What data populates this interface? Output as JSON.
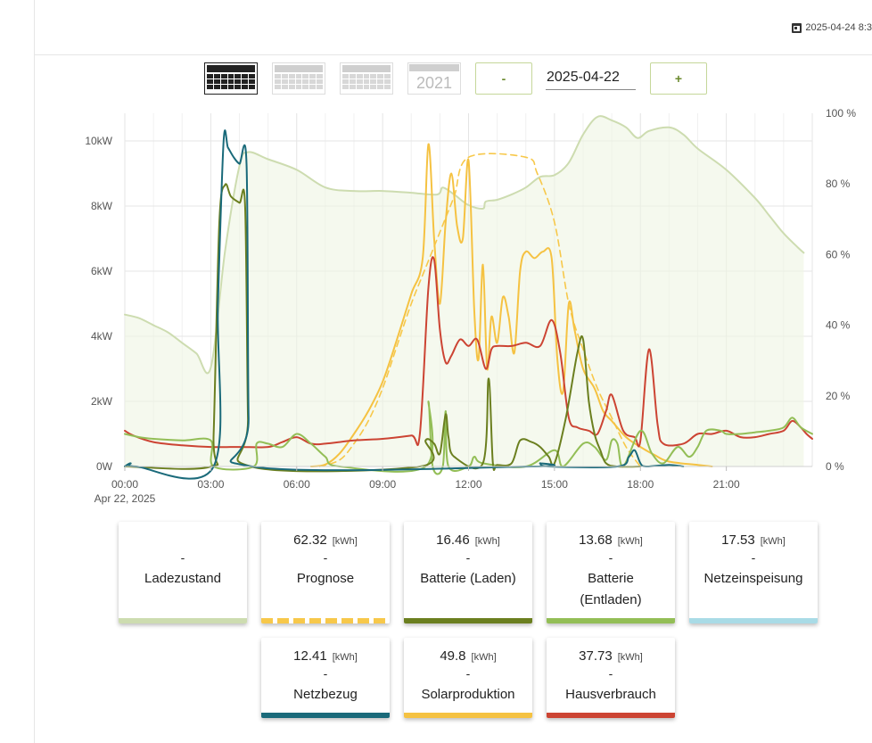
{
  "header": {
    "datetime": "2025-04-24 8:3"
  },
  "toolbar": {
    "year_label": "2021",
    "minus_label": "-",
    "plus_label": "+",
    "date_value": "2025-04-22"
  },
  "colors": {
    "ladezustand": "#cddcb0",
    "prognose": "#f7c84a",
    "batterie_laden": "#6b7f1f",
    "batterie_entladen": "#93be56",
    "netzeinspeisung": "#a9dbe6",
    "netzbezug": "#1a6a7a",
    "solarproduktion": "#f5c242",
    "hausverbrauch": "#cc4433"
  },
  "cards": [
    {
      "key": "ladezustand",
      "value": "",
      "unit": "",
      "dash": "-",
      "label": "Ladezustand"
    },
    {
      "key": "prognose",
      "value": "62.32",
      "unit": "[kWh]",
      "dash": "-",
      "label": "Prognose"
    },
    {
      "key": "batterie_laden",
      "value": "16.46",
      "unit": "[kWh]",
      "dash": "-",
      "label": "Batterie (Laden)"
    },
    {
      "key": "batterie_entladen",
      "value": "13.68",
      "unit": "[kWh]",
      "dash": "-",
      "label": "Batterie (Entladen)"
    },
    {
      "key": "netzeinspeisung",
      "value": "17.53",
      "unit": "[kWh]",
      "dash": "-",
      "label": "Netzeinspeisung"
    },
    {
      "key": "netzbezug",
      "value": "12.41",
      "unit": "[kWh]",
      "dash": "-",
      "label": "Netzbezug"
    },
    {
      "key": "solarproduktion",
      "value": "49.8",
      "unit": "[kWh]",
      "dash": "-",
      "label": "Solarproduktion"
    },
    {
      "key": "hausverbrauch",
      "value": "37.73",
      "unit": "[kWh]",
      "dash": "-",
      "label": "Hausverbrauch"
    }
  ],
  "chart_data": {
    "type": "line",
    "x_unit": "hours",
    "xlim": [
      0,
      24
    ],
    "ylim_left": [
      0,
      10500
    ],
    "ylim_right": [
      0,
      100
    ],
    "x_ticks": [
      {
        "x": 0,
        "label": "00:00",
        "sub": "Apr 22, 2025"
      },
      {
        "x": 3,
        "label": "03:00"
      },
      {
        "x": 6,
        "label": "06:00"
      },
      {
        "x": 9,
        "label": "09:00"
      },
      {
        "x": 12,
        "label": "12:00"
      },
      {
        "x": 15,
        "label": "15:00"
      },
      {
        "x": 18,
        "label": "18:00"
      },
      {
        "x": 21,
        "label": "21:00"
      }
    ],
    "y_ticks_left": [
      {
        "v": 0,
        "label": "0W"
      },
      {
        "v": 2000,
        "label": "2kW"
      },
      {
        "v": 4000,
        "label": "4kW"
      },
      {
        "v": 6000,
        "label": "6kW"
      },
      {
        "v": 8000,
        "label": "8kW"
      },
      {
        "v": 10000,
        "label": "10kW"
      }
    ],
    "y_ticks_right": [
      {
        "v": 0,
        "label": "0 %"
      },
      {
        "v": 20,
        "label": "20 %"
      },
      {
        "v": 40,
        "label": "40 %"
      },
      {
        "v": 60,
        "label": "60 %"
      },
      {
        "v": 80,
        "label": "80 %"
      },
      {
        "v": 100,
        "label": "100 %"
      }
    ],
    "grid": true,
    "series": [
      {
        "name": "Ladezustand",
        "key": "ladezustand",
        "axis": "right",
        "fill": true,
        "points": [
          [
            0,
            43
          ],
          [
            0.5,
            42
          ],
          [
            1,
            40
          ],
          [
            1.5,
            38
          ],
          [
            2,
            35
          ],
          [
            2.5,
            32
          ],
          [
            3,
            28
          ],
          [
            3.5,
            61
          ],
          [
            4,
            85
          ],
          [
            4.3,
            89
          ],
          [
            5,
            87
          ],
          [
            6,
            84
          ],
          [
            7,
            79
          ],
          [
            8,
            78
          ],
          [
            9,
            78
          ],
          [
            10,
            77.5
          ],
          [
            10.9,
            77
          ],
          [
            11.1,
            79
          ],
          [
            11.5,
            77
          ],
          [
            12,
            74
          ],
          [
            12.5,
            73
          ],
          [
            12.6,
            75
          ],
          [
            13,
            75.5
          ],
          [
            13.5,
            77
          ],
          [
            14,
            79
          ],
          [
            14.5,
            82
          ],
          [
            15,
            82.5
          ],
          [
            15.5,
            86
          ],
          [
            16,
            94
          ],
          [
            16.5,
            99
          ],
          [
            17,
            98
          ],
          [
            17.5,
            96
          ],
          [
            17.9,
            93
          ],
          [
            18.3,
            95
          ],
          [
            19,
            96
          ],
          [
            19.5,
            94
          ],
          [
            20,
            90
          ],
          [
            21,
            84
          ],
          [
            22,
            76
          ],
          [
            22.5,
            71
          ],
          [
            23,
            66
          ],
          [
            23.5,
            62
          ],
          [
            23.7,
            60.5
          ]
        ]
      },
      {
        "name": "Prognose",
        "key": "prognose",
        "axis": "left",
        "dashed": true,
        "points": [
          [
            6.8,
            0
          ],
          [
            7.5,
            200
          ],
          [
            8,
            700
          ],
          [
            8.5,
            1400
          ],
          [
            9,
            2400
          ],
          [
            9.5,
            3700
          ],
          [
            10,
            5000
          ],
          [
            10.5,
            6100
          ],
          [
            11,
            7200
          ],
          [
            11.5,
            8300
          ],
          [
            12,
            9500
          ],
          [
            14,
            9500
          ],
          [
            14.4,
            9000
          ],
          [
            15,
            7500
          ],
          [
            15.5,
            5000
          ],
          [
            16,
            3600
          ],
          [
            16.5,
            2400
          ],
          [
            17,
            1500
          ],
          [
            17.5,
            600
          ],
          [
            18,
            0
          ]
        ]
      },
      {
        "name": "Solarproduktion",
        "key": "solarproduktion",
        "axis": "left",
        "points": [
          [
            6.5,
            0
          ],
          [
            7,
            60
          ],
          [
            7.5,
            400
          ],
          [
            8,
            1000
          ],
          [
            8.5,
            1700
          ],
          [
            9,
            2600
          ],
          [
            9.5,
            3900
          ],
          [
            10,
            5300
          ],
          [
            10.4,
            6400
          ],
          [
            10.6,
            9900
          ],
          [
            10.8,
            7000
          ],
          [
            11,
            5000
          ],
          [
            11.2,
            7500
          ],
          [
            11.4,
            9000
          ],
          [
            11.6,
            7400
          ],
          [
            11.8,
            7000
          ],
          [
            12,
            9400
          ],
          [
            12.2,
            4800
          ],
          [
            12.35,
            3300
          ],
          [
            12.5,
            6200
          ],
          [
            12.65,
            3000
          ],
          [
            12.8,
            4600
          ],
          [
            13,
            3800
          ],
          [
            13.2,
            5200
          ],
          [
            13.4,
            4600
          ],
          [
            13.6,
            3500
          ],
          [
            13.8,
            6000
          ],
          [
            14,
            6600
          ],
          [
            14.3,
            6400
          ],
          [
            14.6,
            6600
          ],
          [
            14.9,
            6400
          ],
          [
            15.1,
            3300
          ],
          [
            15.3,
            2300
          ],
          [
            15.5,
            5000
          ],
          [
            15.7,
            4200
          ],
          [
            16,
            3000
          ],
          [
            16.4,
            2400
          ],
          [
            16.7,
            1700
          ],
          [
            17,
            1400
          ],
          [
            17.5,
            900
          ],
          [
            18,
            600
          ],
          [
            18.5,
            350
          ],
          [
            19,
            150
          ],
          [
            20,
            50
          ],
          [
            20.5,
            0
          ]
        ]
      },
      {
        "name": "Hausverbrauch",
        "key": "hausverbrauch",
        "axis": "left",
        "points": [
          [
            0,
            1100
          ],
          [
            0.3,
            950
          ],
          [
            1,
            750
          ],
          [
            2,
            650
          ],
          [
            3,
            600
          ],
          [
            4,
            600
          ],
          [
            5,
            600
          ],
          [
            5.5,
            750
          ],
          [
            6,
            900
          ],
          [
            6.5,
            700
          ],
          [
            7,
            700
          ],
          [
            8,
            800
          ],
          [
            9,
            850
          ],
          [
            10,
            950
          ],
          [
            10.3,
            1000
          ],
          [
            10.6,
            5500
          ],
          [
            10.8,
            6350
          ],
          [
            11,
            4200
          ],
          [
            11.2,
            3200
          ],
          [
            11.4,
            3400
          ],
          [
            11.7,
            3900
          ],
          [
            12,
            3700
          ],
          [
            12.3,
            3900
          ],
          [
            12.6,
            3000
          ],
          [
            12.8,
            3600
          ],
          [
            13,
            3700
          ],
          [
            13.5,
            3700
          ],
          [
            14,
            3800
          ],
          [
            14.5,
            3700
          ],
          [
            14.9,
            4500
          ],
          [
            15.2,
            3500
          ],
          [
            15.5,
            1500
          ],
          [
            15.8,
            1200
          ],
          [
            16.2,
            1100
          ],
          [
            16.5,
            1000
          ],
          [
            16.8,
            1700
          ],
          [
            17,
            2200
          ],
          [
            17.4,
            1100
          ],
          [
            17.8,
            900
          ],
          [
            18,
            800
          ],
          [
            18.3,
            3600
          ],
          [
            18.6,
            1300
          ],
          [
            18.8,
            700
          ],
          [
            19.5,
            700
          ],
          [
            20,
            1000
          ],
          [
            20.5,
            1000
          ],
          [
            21,
            1100
          ],
          [
            21.5,
            900
          ],
          [
            22,
            900
          ],
          [
            22.5,
            1000
          ],
          [
            23,
            1100
          ],
          [
            23.3,
            1400
          ],
          [
            23.6,
            1200
          ],
          [
            23.8,
            1000
          ],
          [
            24,
            850
          ]
        ]
      },
      {
        "name": "Batterie (Entladen)",
        "key": "batterie_entladen",
        "axis": "left",
        "points": [
          [
            0,
            1000
          ],
          [
            0.5,
            900
          ],
          [
            1,
            850
          ],
          [
            2,
            800
          ],
          [
            3,
            800
          ],
          [
            3.1,
            0
          ],
          [
            4.5,
            0
          ],
          [
            4.6,
            700
          ],
          [
            5,
            700
          ],
          [
            5.5,
            600
          ],
          [
            6,
            1000
          ],
          [
            6.5,
            700
          ],
          [
            7,
            300
          ],
          [
            7.5,
            0
          ],
          [
            10.5,
            0
          ],
          [
            10.6,
            2000
          ],
          [
            10.75,
            0
          ],
          [
            11.1,
            0
          ],
          [
            11.2,
            1700
          ],
          [
            11.3,
            0
          ],
          [
            12,
            0
          ],
          [
            12.2,
            300
          ],
          [
            12.5,
            100
          ],
          [
            14,
            0
          ],
          [
            15,
            500
          ],
          [
            15.3,
            0
          ],
          [
            16,
            700
          ],
          [
            16.4,
            600
          ],
          [
            16.8,
            200
          ],
          [
            17,
            800
          ],
          [
            17.2,
            700
          ],
          [
            17.4,
            0
          ],
          [
            18,
            1100
          ],
          [
            18.4,
            400
          ],
          [
            18.8,
            100
          ],
          [
            19.3,
            600
          ],
          [
            19.7,
            300
          ],
          [
            20,
            600
          ],
          [
            20.3,
            1100
          ],
          [
            20.8,
            1100
          ],
          [
            21,
            1000
          ],
          [
            21.5,
            1000
          ],
          [
            22,
            1050
          ],
          [
            22.5,
            1100
          ],
          [
            23,
            1200
          ],
          [
            23.3,
            1500
          ],
          [
            23.6,
            1200
          ],
          [
            24,
            1000
          ]
        ]
      },
      {
        "name": "Batterie (Laden)",
        "key": "batterie_laden",
        "axis": "left",
        "points": [
          [
            0,
            0
          ],
          [
            3,
            0
          ],
          [
            3.1,
            1000
          ],
          [
            3.3,
            7500
          ],
          [
            3.5,
            8650
          ],
          [
            3.7,
            8300
          ],
          [
            4,
            8100
          ],
          [
            4.2,
            8000
          ],
          [
            4.3,
            1500
          ],
          [
            4.4,
            0
          ],
          [
            10.3,
            0
          ],
          [
            10.5,
            800
          ],
          [
            10.8,
            700
          ],
          [
            11,
            400
          ],
          [
            11.2,
            1600
          ],
          [
            11.3,
            900
          ],
          [
            11.5,
            300
          ],
          [
            12.5,
            100
          ],
          [
            12.7,
            2700
          ],
          [
            12.85,
            100
          ],
          [
            13,
            50
          ],
          [
            13.5,
            100
          ],
          [
            13.8,
            800
          ],
          [
            14.2,
            750
          ],
          [
            14.5,
            600
          ],
          [
            14.8,
            300
          ],
          [
            15,
            100
          ],
          [
            15.4,
            1500
          ],
          [
            15.8,
            3500
          ],
          [
            16,
            3900
          ],
          [
            16.2,
            2000
          ],
          [
            16.4,
            1000
          ],
          [
            16.6,
            500
          ],
          [
            16.8,
            100
          ],
          [
            17.2,
            0
          ],
          [
            18,
            0
          ]
        ]
      },
      {
        "name": "Netzbezug",
        "key": "netzbezug",
        "axis": "left",
        "points": [
          [
            0,
            0
          ],
          [
            0.2,
            100
          ],
          [
            0.4,
            0
          ],
          [
            3.1,
            0
          ],
          [
            3.25,
            5000
          ],
          [
            3.45,
            10000
          ],
          [
            3.6,
            9800
          ],
          [
            3.8,
            9500
          ],
          [
            4,
            9300
          ],
          [
            4.25,
            9300
          ],
          [
            4.32,
            1500
          ],
          [
            4.45,
            0
          ],
          [
            14.2,
            0
          ],
          [
            14.5,
            100
          ],
          [
            14.8,
            0
          ],
          [
            17.2,
            0
          ],
          [
            17.6,
            300
          ],
          [
            17.8,
            500
          ],
          [
            18,
            100
          ],
          [
            18.2,
            0
          ],
          [
            19,
            50
          ],
          [
            19.5,
            0
          ]
        ]
      }
    ]
  }
}
